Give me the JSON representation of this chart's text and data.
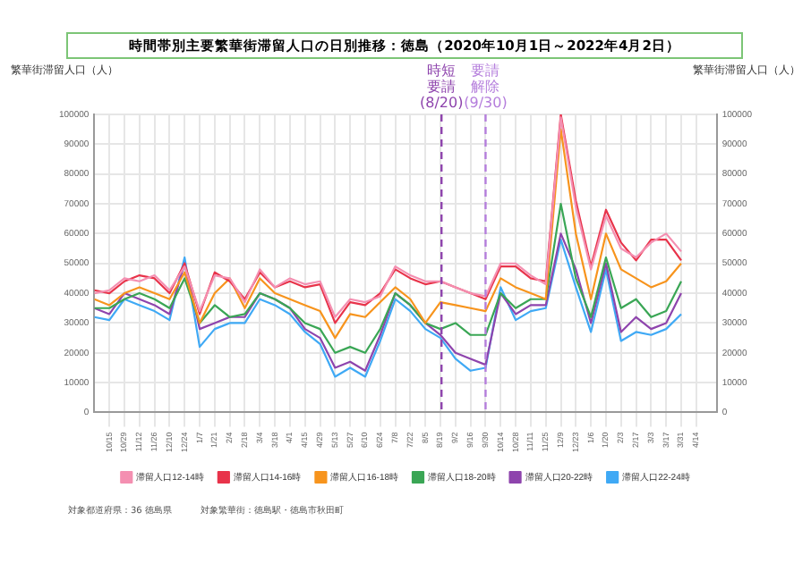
{
  "chart_data": {
    "type": "line",
    "title": "時間帯別主要繁華街滞留人口の日別推移：徳島（2020年10月1日～2022年4月2日）",
    "ylabel": "繁華街滞留人口（人）",
    "y2label": "繁華街滞留人口（人）",
    "x": [
      "2020-10-01",
      "2020-10-15",
      "2020-10-29",
      "2020-11-12",
      "2020-11-26",
      "2020-12-10",
      "2020-12-24",
      "2021-01-07",
      "2021-01-21",
      "2021-02-04",
      "2021-02-18",
      "2021-03-04",
      "2021-03-18",
      "2021-04-01",
      "2021-04-15",
      "2021-04-29",
      "2021-05-13",
      "2021-05-27",
      "2021-06-10",
      "2021-06-24",
      "2021-07-08",
      "2021-07-22",
      "2021-08-05",
      "2021-08-19",
      "2021-09-02",
      "2021-09-16",
      "2021-09-30",
      "2021-10-14",
      "2021-10-28",
      "2021-11-11",
      "2021-11-25",
      "2021-12-09",
      "2021-12-23",
      "2022-01-06",
      "2022-01-20",
      "2022-02-03",
      "2022-02-17",
      "2022-03-03",
      "2022-03-17",
      "2022-03-31"
    ],
    "series": [
      {
        "name": "滞留人口12-14時",
        "color": "#f48fb1",
        "values": [
          40000,
          41000,
          45000,
          44000,
          46000,
          41000,
          49000,
          34000,
          46000,
          45000,
          37000,
          48000,
          42000,
          45000,
          43000,
          44000,
          32000,
          38000,
          37000,
          39000,
          49000,
          46000,
          44000,
          44000,
          42000,
          40000,
          39000,
          50000,
          50000,
          46000,
          43000,
          99000,
          69000,
          48000,
          66000,
          55000,
          52000,
          57000,
          60000,
          54000
        ]
      },
      {
        "name": "滞留人口14-16時",
        "color": "#e8334a",
        "values": [
          41000,
          40000,
          44000,
          46000,
          45000,
          40000,
          50000,
          33000,
          47000,
          44000,
          38000,
          47000,
          42000,
          44000,
          42000,
          43000,
          30000,
          37000,
          36000,
          40000,
          48000,
          45000,
          43000,
          44000,
          42000,
          40000,
          38000,
          49000,
          49000,
          45000,
          44000,
          100000,
          71000,
          49000,
          68000,
          57000,
          51000,
          58000,
          58000,
          51000
        ]
      },
      {
        "name": "滞留人口16-18時",
        "color": "#f7941d",
        "values": [
          38000,
          36000,
          40000,
          42000,
          40000,
          38000,
          47000,
          30000,
          40000,
          45000,
          35000,
          45000,
          40000,
          38000,
          36000,
          34000,
          25000,
          33000,
          32000,
          37000,
          42000,
          38000,
          30000,
          37000,
          36000,
          35000,
          34000,
          45000,
          42000,
          40000,
          38000,
          95000,
          60000,
          38000,
          60000,
          48000,
          45000,
          42000,
          44000,
          50000
        ]
      },
      {
        "name": "滞留人口18-20時",
        "color": "#3aa655",
        "values": [
          35000,
          35000,
          38000,
          40000,
          38000,
          35000,
          45000,
          30000,
          36000,
          32000,
          33000,
          40000,
          38000,
          35000,
          30000,
          28000,
          20000,
          22000,
          20000,
          28000,
          40000,
          36000,
          30000,
          28000,
          30000,
          26000,
          26000,
          40000,
          35000,
          38000,
          38000,
          70000,
          45000,
          32000,
          52000,
          35000,
          38000,
          32000,
          34000,
          44000
        ]
      },
      {
        "name": "滞留人口20-22時",
        "color": "#8e44ad",
        "values": [
          35000,
          33000,
          40000,
          38000,
          36000,
          33000,
          50000,
          28000,
          30000,
          32000,
          32000,
          40000,
          38000,
          35000,
          28000,
          25000,
          15000,
          17000,
          14000,
          26000,
          40000,
          36000,
          30000,
          26000,
          20000,
          18000,
          16000,
          40000,
          33000,
          36000,
          36000,
          60000,
          48000,
          30000,
          50000,
          27000,
          32000,
          28000,
          30000,
          40000
        ]
      },
      {
        "name": "滞留人口22-24時",
        "color": "#3fa9f5",
        "values": [
          32000,
          31000,
          38000,
          36000,
          34000,
          31000,
          52000,
          22000,
          28000,
          30000,
          30000,
          38000,
          36000,
          33000,
          27000,
          23000,
          12000,
          15000,
          12000,
          24000,
          38000,
          34000,
          28000,
          25000,
          18000,
          14000,
          15000,
          42000,
          31000,
          34000,
          35000,
          58000,
          42000,
          27000,
          48000,
          24000,
          27000,
          26000,
          28000,
          33000
        ]
      }
    ],
    "xlim": [
      "2020-10-01",
      "2022-05-03"
    ],
    "xticks": [
      {
        "value": "2020-10-15",
        "label": "10/15"
      },
      {
        "value": "2020-10-29",
        "label": "10/29"
      },
      {
        "value": "2020-11-12",
        "label": "11/12"
      },
      {
        "value": "2020-11-26",
        "label": "11/26"
      },
      {
        "value": "2020-12-10",
        "label": "12/10"
      },
      {
        "value": "2020-12-24",
        "label": "12/24"
      },
      {
        "value": "2021-01-07",
        "label": "1/7"
      },
      {
        "value": "2021-01-21",
        "label": "1/21"
      },
      {
        "value": "2021-02-04",
        "label": "2/4"
      },
      {
        "value": "2021-02-18",
        "label": "2/18"
      },
      {
        "value": "2021-03-04",
        "label": "3/4"
      },
      {
        "value": "2021-03-18",
        "label": "3/18"
      },
      {
        "value": "2021-04-01",
        "label": "4/1"
      },
      {
        "value": "2021-04-15",
        "label": "4/15"
      },
      {
        "value": "2021-04-29",
        "label": "4/29"
      },
      {
        "value": "2021-05-13",
        "label": "5/13"
      },
      {
        "value": "2021-05-27",
        "label": "5/27"
      },
      {
        "value": "2021-06-10",
        "label": "6/10"
      },
      {
        "value": "2021-06-24",
        "label": "6/24"
      },
      {
        "value": "2021-07-08",
        "label": "7/8"
      },
      {
        "value": "2021-07-22",
        "label": "7/22"
      },
      {
        "value": "2021-08-05",
        "label": "8/5"
      },
      {
        "value": "2021-08-19",
        "label": "8/19"
      },
      {
        "value": "2021-09-02",
        "label": "9/2"
      },
      {
        "value": "2021-09-16",
        "label": "9/16"
      },
      {
        "value": "2021-09-30",
        "label": "9/30"
      },
      {
        "value": "2021-10-14",
        "label": "10/14"
      },
      {
        "value": "2021-10-28",
        "label": "10/28"
      },
      {
        "value": "2021-11-11",
        "label": "11/11"
      },
      {
        "value": "2021-11-25",
        "label": "11/25"
      },
      {
        "value": "2021-12-09",
        "label": "12/9"
      },
      {
        "value": "2021-12-23",
        "label": "12/23"
      },
      {
        "value": "2022-01-06",
        "label": "1/6"
      },
      {
        "value": "2022-01-20",
        "label": "1/20"
      },
      {
        "value": "2022-02-03",
        "label": "2/3"
      },
      {
        "value": "2022-02-17",
        "label": "2/17"
      },
      {
        "value": "2022-03-03",
        "label": "3/3"
      },
      {
        "value": "2022-03-17",
        "label": "3/17"
      },
      {
        "value": "2022-03-31",
        "label": "3/31"
      },
      {
        "value": "2022-04-14",
        "label": "4/14"
      }
    ],
    "ylim": [
      0,
      100000
    ],
    "yticks": [
      0,
      10000,
      20000,
      30000,
      40000,
      50000,
      60000,
      70000,
      80000,
      90000,
      100000
    ],
    "y2lim": [
      0,
      100000
    ],
    "y2ticks": [
      0,
      10000,
      20000,
      30000,
      40000,
      50000,
      60000,
      70000,
      80000,
      90000,
      100000
    ],
    "ref_lines": [
      {
        "axis": "x",
        "value": "2021-08-20",
        "label": "時短要請(8/20)",
        "color": "#8e44ad",
        "line_style": "dashed"
      },
      {
        "axis": "x",
        "value": "2021-09-30",
        "label": "要請解除(9/30)",
        "color": "#b57edc",
        "line_style": "dashed"
      }
    ],
    "annotations": [
      "対象都道府県：36 徳島県",
      "対象繁華街：徳島駅・徳島市秋田町"
    ],
    "grid": true,
    "legend": "bottom",
    "marker": "none",
    "line_style": "solid"
  }
}
